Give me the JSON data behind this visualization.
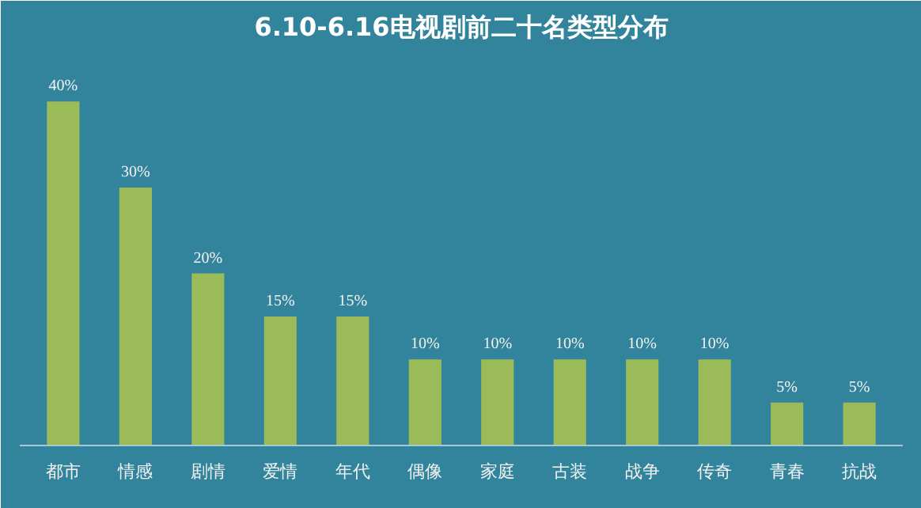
{
  "chart_data": {
    "type": "bar",
    "title": "6.10-6.16电视剧前二十名类型分布",
    "categories": [
      "都市",
      "情感",
      "剧情",
      "爱情",
      "年代",
      "偶像",
      "家庭",
      "古装",
      "战争",
      "传奇",
      "青春",
      "抗战"
    ],
    "values": [
      40,
      30,
      20,
      15,
      15,
      10,
      10,
      10,
      10,
      10,
      5,
      5
    ],
    "value_labels": [
      "40%",
      "30%",
      "20%",
      "15%",
      "15%",
      "10%",
      "10%",
      "10%",
      "10%",
      "10%",
      "5%",
      "5%"
    ],
    "color": "#9bbb59",
    "grid": false
  }
}
